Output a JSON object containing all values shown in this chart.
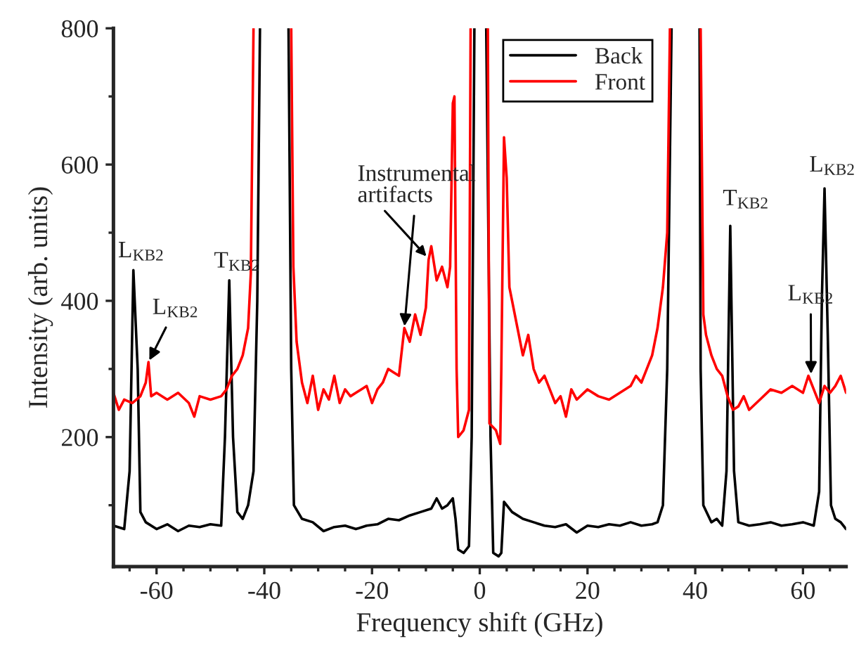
{
  "chart_data": {
    "type": "line",
    "xlabel": "Frequency shift (GHz)",
    "ylabel": "Intensity (arb. units)",
    "xlim": [
      -68,
      68
    ],
    "ylim": [
      10,
      800
    ],
    "xticks": [
      {
        "value": -65,
        "label": null
      },
      -60,
      {
        "value": -55,
        "label": null
      },
      {
        "value": -50,
        "label": null
      },
      {
        "value": -45,
        "label": null
      },
      -40,
      {
        "value": -35,
        "label": null
      },
      {
        "value": -30,
        "label": null
      },
      {
        "value": -25,
        "label": null
      },
      -20,
      {
        "value": -15,
        "label": null
      },
      {
        "value": -10,
        "label": null
      },
      {
        "value": -5,
        "label": null
      },
      0,
      {
        "value": 5,
        "label": null
      },
      {
        "value": 10,
        "label": null
      },
      {
        "value": 15,
        "label": null
      },
      20,
      {
        "value": 25,
        "label": null
      },
      {
        "value": 30,
        "label": null
      },
      {
        "value": 35,
        "label": null
      },
      40,
      {
        "value": 45,
        "label": null
      },
      {
        "value": 50,
        "label": null
      },
      {
        "value": 55,
        "label": null
      },
      60,
      {
        "value": 65,
        "label": null
      }
    ],
    "yticks": [
      {
        "value": 100,
        "label": null
      },
      200,
      {
        "value": 300,
        "label": null
      },
      400,
      {
        "value": 500,
        "label": null
      },
      600,
      {
        "value": 700,
        "label": null
      },
      800
    ],
    "grid": false,
    "legend": "top",
    "line_style": "solid",
    "marker": "none",
    "series": [
      {
        "name": "Back",
        "color": "#000000",
        "x": [
          -68,
          -66,
          -65,
          -64.3,
          -63.5,
          -63,
          -62,
          -60,
          -58,
          -56,
          -54,
          -52,
          -50,
          -48,
          -47.3,
          -46.5,
          -45.8,
          -45,
          -44,
          -43,
          -42,
          -41.3,
          -40.8,
          -38,
          -35.5,
          -35,
          -34.5,
          -33,
          -31,
          -29,
          -27,
          -25,
          -23,
          -21,
          -19,
          -17,
          -15,
          -13,
          -11,
          -9,
          -8,
          -7,
          -6,
          -5,
          -4.5,
          -4,
          -3,
          -2,
          -1.5,
          -1,
          0,
          1.2,
          2,
          2.5,
          3.5,
          4,
          4.5,
          6,
          8,
          10,
          12,
          14,
          16,
          18,
          20,
          22,
          24,
          26,
          28,
          30,
          32,
          33,
          34,
          34.8,
          35.6,
          38,
          40.8,
          41,
          41.5,
          43,
          44,
          45,
          45.8,
          46.5,
          47.2,
          48,
          50,
          52,
          54,
          56,
          58,
          60,
          62,
          63,
          63.5,
          64,
          64.6,
          65.2,
          66,
          67,
          68
        ],
        "values": [
          70,
          65,
          150,
          445,
          300,
          90,
          75,
          65,
          72,
          62,
          70,
          68,
          72,
          70,
          200,
          430,
          200,
          90,
          80,
          100,
          150,
          400,
          800,
          null,
          800,
          300,
          100,
          80,
          75,
          62,
          68,
          70,
          65,
          70,
          72,
          80,
          78,
          85,
          90,
          95,
          110,
          95,
          100,
          110,
          80,
          35,
          30,
          40,
          200,
          800,
          null,
          800,
          200,
          30,
          25,
          30,
          105,
          90,
          80,
          75,
          70,
          68,
          72,
          60,
          70,
          68,
          72,
          70,
          75,
          70,
          72,
          75,
          100,
          300,
          800,
          null,
          800,
          300,
          100,
          75,
          80,
          70,
          150,
          510,
          150,
          75,
          70,
          72,
          75,
          70,
          72,
          75,
          70,
          120,
          400,
          565,
          350,
          100,
          80,
          75,
          65
        ]
      },
      {
        "name": "Front",
        "color": "#ff0000",
        "x": [
          -68,
          -67,
          -66,
          -64.5,
          -63,
          -62,
          -61.5,
          -61,
          -60,
          -58,
          -56,
          -54,
          -53,
          -52,
          -50,
          -48,
          -47,
          -46,
          -45,
          -44,
          -43,
          -42.5,
          -42,
          -38,
          -35,
          -34.6,
          -34,
          -33,
          -32,
          -31,
          -30,
          -29,
          -28,
          -27,
          -26,
          -25,
          -24,
          -23,
          -22,
          -21,
          -20,
          -19,
          -18,
          -17,
          -16,
          -15,
          -14,
          -13,
          -12,
          -11,
          -10,
          -9.5,
          -9,
          -8,
          -7,
          -6,
          -5.5,
          -5,
          -4.7,
          -4.3,
          -4,
          -3,
          -2,
          -1.7,
          0,
          1.5,
          1.8,
          3,
          3.8,
          4,
          4.5,
          5,
          5.5,
          6,
          7,
          8,
          9,
          10,
          11,
          12,
          13,
          14,
          15,
          16,
          17,
          18,
          20,
          22,
          24,
          26,
          28,
          29,
          30,
          31,
          32,
          33,
          34,
          34.8,
          35.3,
          38,
          41,
          41.5,
          42,
          43,
          44,
          45,
          46,
          47,
          48,
          49,
          50,
          52,
          54,
          56,
          58,
          60,
          61,
          62,
          63,
          64,
          65,
          66,
          67,
          68
        ],
        "values": [
          265,
          240,
          255,
          250,
          260,
          280,
          310,
          260,
          265,
          255,
          265,
          250,
          230,
          260,
          255,
          260,
          270,
          290,
          300,
          320,
          360,
          440,
          800,
          null,
          800,
          450,
          340,
          280,
          250,
          290,
          240,
          270,
          255,
          290,
          250,
          270,
          260,
          265,
          270,
          275,
          250,
          270,
          280,
          300,
          295,
          290,
          360,
          340,
          380,
          350,
          390,
          460,
          480,
          430,
          450,
          420,
          450,
          690,
          700,
          300,
          200,
          210,
          240,
          800,
          null,
          800,
          220,
          210,
          190,
          300,
          640,
          580,
          420,
          400,
          360,
          320,
          350,
          300,
          280,
          290,
          270,
          250,
          260,
          230,
          270,
          255,
          270,
          260,
          255,
          265,
          275,
          290,
          280,
          300,
          320,
          360,
          420,
          500,
          800,
          null,
          800,
          380,
          350,
          320,
          300,
          290,
          260,
          240,
          245,
          260,
          240,
          255,
          270,
          265,
          275,
          265,
          290,
          270,
          250,
          275,
          265,
          275,
          290,
          265
        ]
      }
    ],
    "annotations": [
      {
        "text": "L$_{KB2}$",
        "x": -64.3,
        "y": 445
      },
      {
        "text": "L$_{KB2}$",
        "x": -61.5,
        "y": 310
      },
      {
        "text": "T$_{KB2}$",
        "x": -46.5,
        "y": 430
      },
      {
        "text": "Instrumental\nartifacts",
        "x": -14,
        "y": 360
      },
      {
        "text": "T$_{KB2}$",
        "x": 46.5,
        "y": 510
      },
      {
        "text": "L$_{KB2}$",
        "x": 64,
        "y": 565
      },
      {
        "text": "L$_{KB2}$",
        "x": 61.5,
        "y": 290
      }
    ]
  }
}
